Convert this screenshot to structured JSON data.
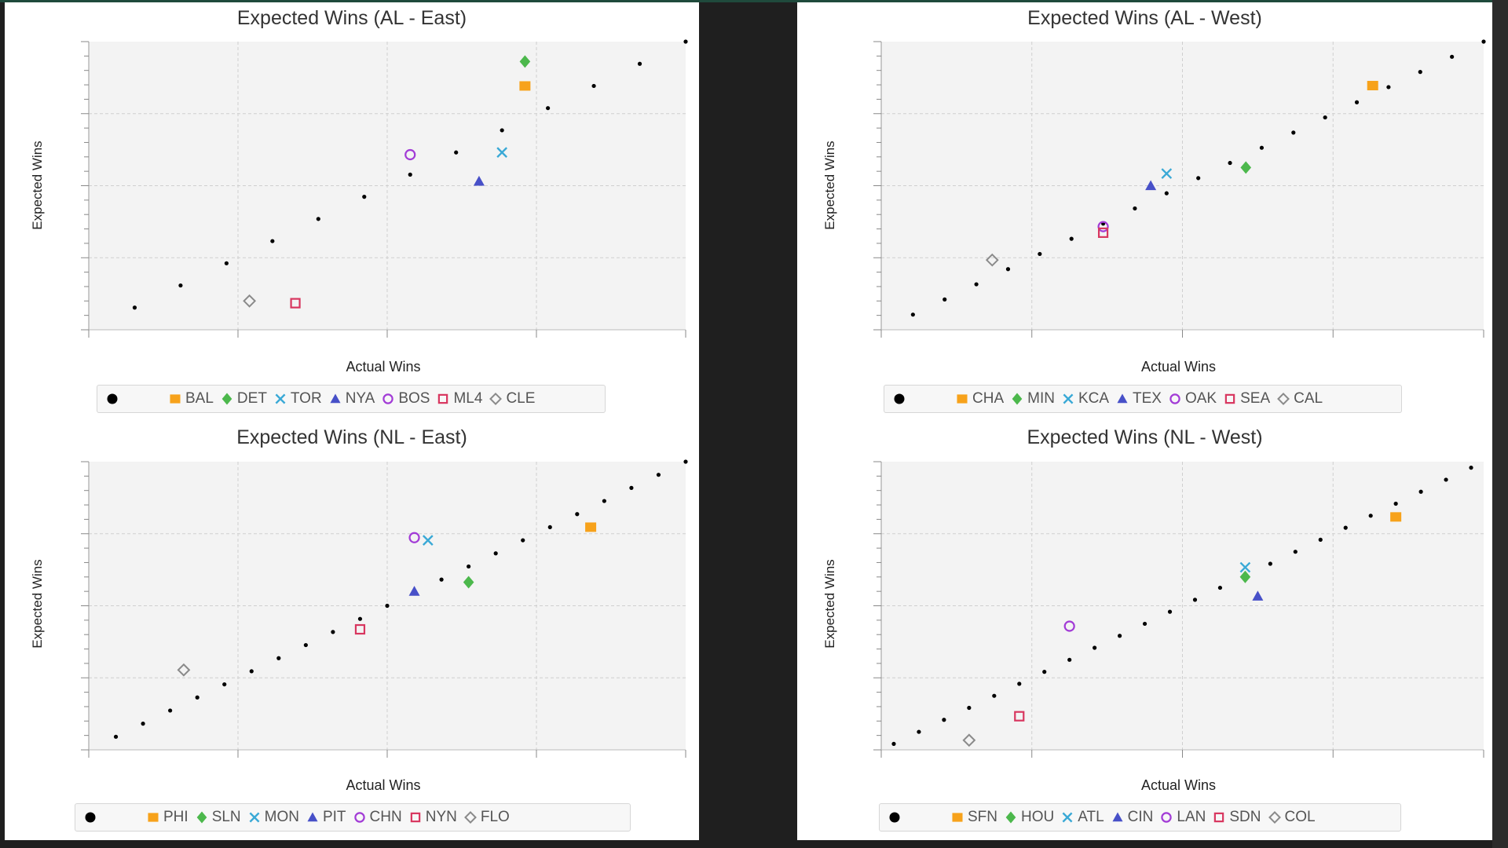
{
  "colors": {
    "pythag": "#000000",
    "square": "#f7a21b",
    "diamond": "#4cb84c",
    "cross": "#3aa9d6",
    "triangle": "#4750c8",
    "circle": "#a23bd6",
    "opensquare": "#d8365f",
    "opendiamond": "#8a8a8a"
  },
  "chart_data": [
    {
      "type": "scatter",
      "title": "Expected Wins (AL - East)",
      "xlabel": "Actual Wins",
      "ylabel": "Expected Wins",
      "xlim": [
        0,
        13
      ],
      "ylim": [
        0,
        13
      ],
      "grid": true,
      "legend_position": "bottom",
      "series": [
        {
          "name": "",
          "marker": "pythag",
          "x": [
            1,
            2,
            3,
            4,
            5,
            6,
            7,
            8,
            9,
            10,
            11,
            12,
            13
          ],
          "y": [
            1,
            2,
            3,
            4,
            5,
            6,
            7,
            8,
            9,
            10,
            11,
            12,
            13
          ]
        },
        {
          "name": "BAL",
          "marker": "square",
          "x": [
            9.5
          ],
          "y": [
            11.0
          ]
        },
        {
          "name": "DET",
          "marker": "diamond",
          "x": [
            9.5
          ],
          "y": [
            12.1
          ]
        },
        {
          "name": "TOR",
          "marker": "cross",
          "x": [
            9.0
          ],
          "y": [
            8.0
          ]
        },
        {
          "name": "NYA",
          "marker": "triangle",
          "x": [
            8.5
          ],
          "y": [
            6.7
          ]
        },
        {
          "name": "BOS",
          "marker": "circle",
          "x": [
            7.0
          ],
          "y": [
            7.9
          ]
        },
        {
          "name": "ML4",
          "marker": "opensquare",
          "x": [
            4.5
          ],
          "y": [
            1.2
          ]
        },
        {
          "name": "CLE",
          "marker": "opendiamond",
          "x": [
            3.5
          ],
          "y": [
            1.3
          ]
        }
      ]
    },
    {
      "type": "scatter",
      "title": "Expected Wins (AL - West)",
      "xlabel": "Actual Wins",
      "ylabel": "Expected Wins",
      "xlim": [
        0,
        19
      ],
      "ylim": [
        0,
        19
      ],
      "grid": true,
      "legend_position": "bottom",
      "series": [
        {
          "name": "",
          "marker": "pythag",
          "x": [
            1,
            2,
            3,
            4,
            5,
            6,
            7,
            8,
            9,
            10,
            11,
            12,
            13,
            14,
            15,
            16,
            17,
            18,
            19
          ],
          "y": [
            1,
            2,
            3,
            4,
            5,
            6,
            7,
            8,
            9,
            10,
            11,
            12,
            13,
            14,
            15,
            16,
            17,
            18,
            19
          ]
        },
        {
          "name": "CHA",
          "marker": "square",
          "x": [
            15.5
          ],
          "y": [
            16.1
          ]
        },
        {
          "name": "MIN",
          "marker": "diamond",
          "x": [
            11.5
          ],
          "y": [
            10.7
          ]
        },
        {
          "name": "KCA",
          "marker": "cross",
          "x": [
            9.0
          ],
          "y": [
            10.3
          ]
        },
        {
          "name": "TEX",
          "marker": "triangle",
          "x": [
            8.5
          ],
          "y": [
            9.5
          ]
        },
        {
          "name": "OAK",
          "marker": "circle",
          "x": [
            7.0
          ],
          "y": [
            6.8
          ]
        },
        {
          "name": "SEA",
          "marker": "opensquare",
          "x": [
            7.0
          ],
          "y": [
            6.4
          ]
        },
        {
          "name": "CAL",
          "marker": "opendiamond",
          "x": [
            3.5
          ],
          "y": [
            4.6
          ]
        }
      ]
    },
    {
      "type": "scatter",
      "title": "Expected Wins (NL - East)",
      "xlabel": "Actual Wins",
      "ylabel": "Expected Wins",
      "xlim": [
        0,
        22
      ],
      "ylim": [
        0,
        22
      ],
      "grid": true,
      "legend_position": "bottom",
      "series": [
        {
          "name": "",
          "marker": "pythag",
          "x": [
            1,
            2,
            3,
            4,
            5,
            6,
            7,
            8,
            9,
            10,
            11,
            12,
            13,
            14,
            15,
            16,
            17,
            18,
            19,
            20,
            21,
            22
          ],
          "y": [
            1,
            2,
            3,
            4,
            5,
            6,
            7,
            8,
            9,
            10,
            11,
            12,
            13,
            14,
            15,
            16,
            17,
            18,
            19,
            20,
            21,
            22
          ]
        },
        {
          "name": "PHI",
          "marker": "square",
          "x": [
            18.5
          ],
          "y": [
            17.0
          ]
        },
        {
          "name": "SLN",
          "marker": "diamond",
          "x": [
            14.0
          ],
          "y": [
            12.8
          ]
        },
        {
          "name": "MON",
          "marker": "cross",
          "x": [
            12.5
          ],
          "y": [
            16.0
          ]
        },
        {
          "name": "PIT",
          "marker": "triangle",
          "x": [
            12.0
          ],
          "y": [
            12.1
          ]
        },
        {
          "name": "CHN",
          "marker": "circle",
          "x": [
            12.0
          ],
          "y": [
            16.2
          ]
        },
        {
          "name": "NYN",
          "marker": "opensquare",
          "x": [
            10.0
          ],
          "y": [
            9.2
          ]
        },
        {
          "name": "FLO",
          "marker": "opendiamond",
          "x": [
            3.5
          ],
          "y": [
            6.1
          ]
        }
      ]
    },
    {
      "type": "scatter",
      "title": "Expected Wins (NL - West)",
      "xlabel": "Actual Wins",
      "ylabel": "Expected Wins",
      "xlim": [
        0,
        24
      ],
      "ylim": [
        0,
        24
      ],
      "grid": true,
      "legend_position": "bottom",
      "series": [
        {
          "name": "",
          "marker": "pythag",
          "x": [
            0.5,
            1.5,
            2.5,
            3.5,
            4.5,
            5.5,
            6.5,
            7.5,
            8.5,
            9.5,
            10.5,
            11.5,
            12.5,
            13.5,
            14.5,
            15.5,
            16.5,
            17.5,
            18.5,
            19.5,
            20.5,
            21.5,
            22.5,
            23.5
          ],
          "y": [
            0.5,
            1.5,
            2.5,
            3.5,
            4.5,
            5.5,
            6.5,
            7.5,
            8.5,
            9.5,
            10.5,
            11.5,
            12.5,
            13.5,
            14.5,
            15.5,
            16.5,
            17.5,
            18.5,
            19.5,
            20.5,
            21.5,
            22.5,
            23.5
          ]
        },
        {
          "name": "SFN",
          "marker": "square",
          "x": [
            20.5
          ],
          "y": [
            19.4
          ]
        },
        {
          "name": "HOU",
          "marker": "diamond",
          "x": [
            14.5
          ],
          "y": [
            14.4
          ]
        },
        {
          "name": "ATL",
          "marker": "cross",
          "x": [
            14.5
          ],
          "y": [
            15.2
          ]
        },
        {
          "name": "CIN",
          "marker": "triangle",
          "x": [
            15.0
          ],
          "y": [
            12.8
          ]
        },
        {
          "name": "LAN",
          "marker": "circle",
          "x": [
            7.5
          ],
          "y": [
            10.3
          ]
        },
        {
          "name": "SDN",
          "marker": "opensquare",
          "x": [
            5.5
          ],
          "y": [
            2.8
          ]
        },
        {
          "name": "COL",
          "marker": "opendiamond",
          "x": [
            3.5
          ],
          "y": [
            0.8
          ]
        }
      ]
    }
  ]
}
